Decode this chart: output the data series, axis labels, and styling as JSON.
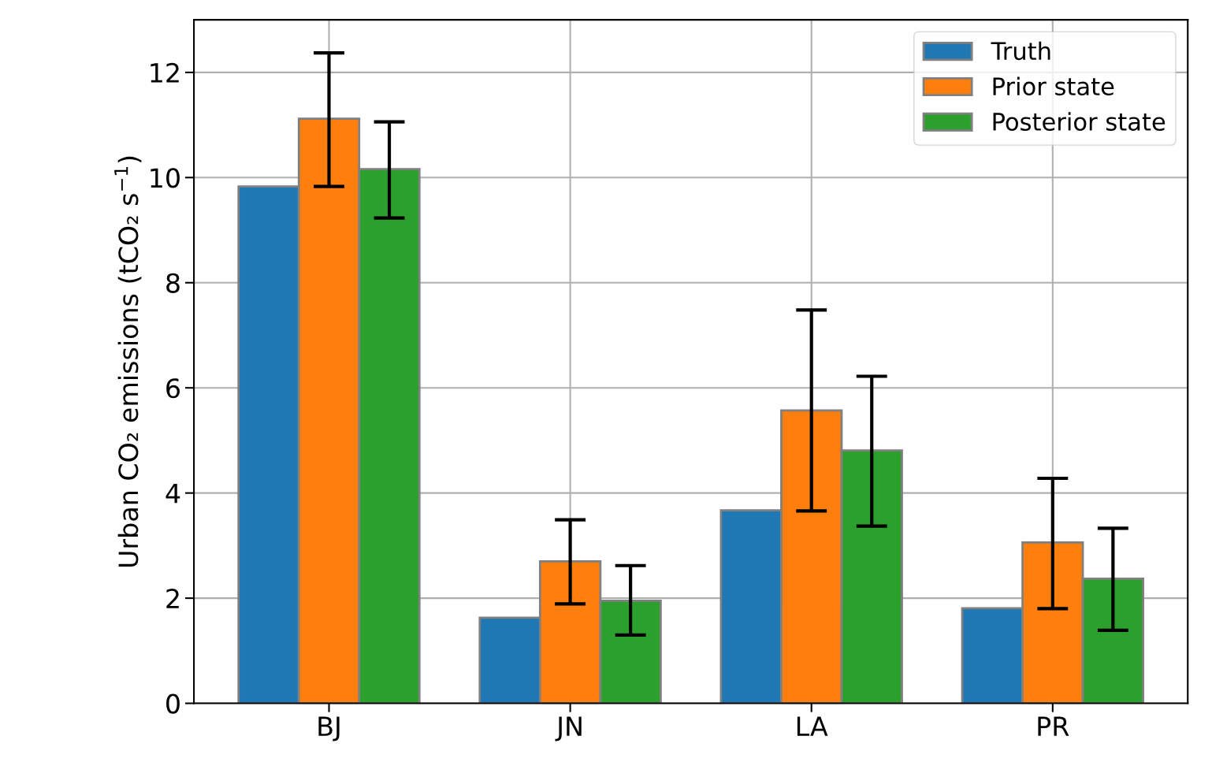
{
  "chart_data": {
    "type": "bar",
    "ylabel": "Urban CO₂ emissions (tCO₂ s$^{−1}$)",
    "categories": [
      "BJ",
      "JN",
      "LA",
      "PR"
    ],
    "series": [
      {
        "name": "Truth",
        "color": "#1f77b4",
        "values": [
          9.83,
          1.63,
          3.67,
          1.81
        ]
      },
      {
        "name": "Prior state",
        "color": "#ff7f0e",
        "values": [
          11.12,
          2.7,
          5.57,
          3.06
        ],
        "errors": [
          [
            9.83,
            12.37
          ],
          [
            1.89,
            3.49
          ],
          [
            3.66,
            7.48
          ],
          [
            1.8,
            4.28
          ]
        ]
      },
      {
        "name": "Posterior state",
        "color": "#2ca02c",
        "values": [
          10.16,
          1.95,
          4.81,
          2.37
        ],
        "errors": [
          [
            9.23,
            11.06
          ],
          [
            1.3,
            2.62
          ],
          [
            3.37,
            6.22
          ],
          [
            1.39,
            3.33
          ]
        ]
      }
    ],
    "ylim": [
      0,
      13
    ],
    "yticks": [
      0,
      2,
      4,
      6,
      8,
      10,
      12
    ],
    "grid": true,
    "legend": "top right"
  }
}
